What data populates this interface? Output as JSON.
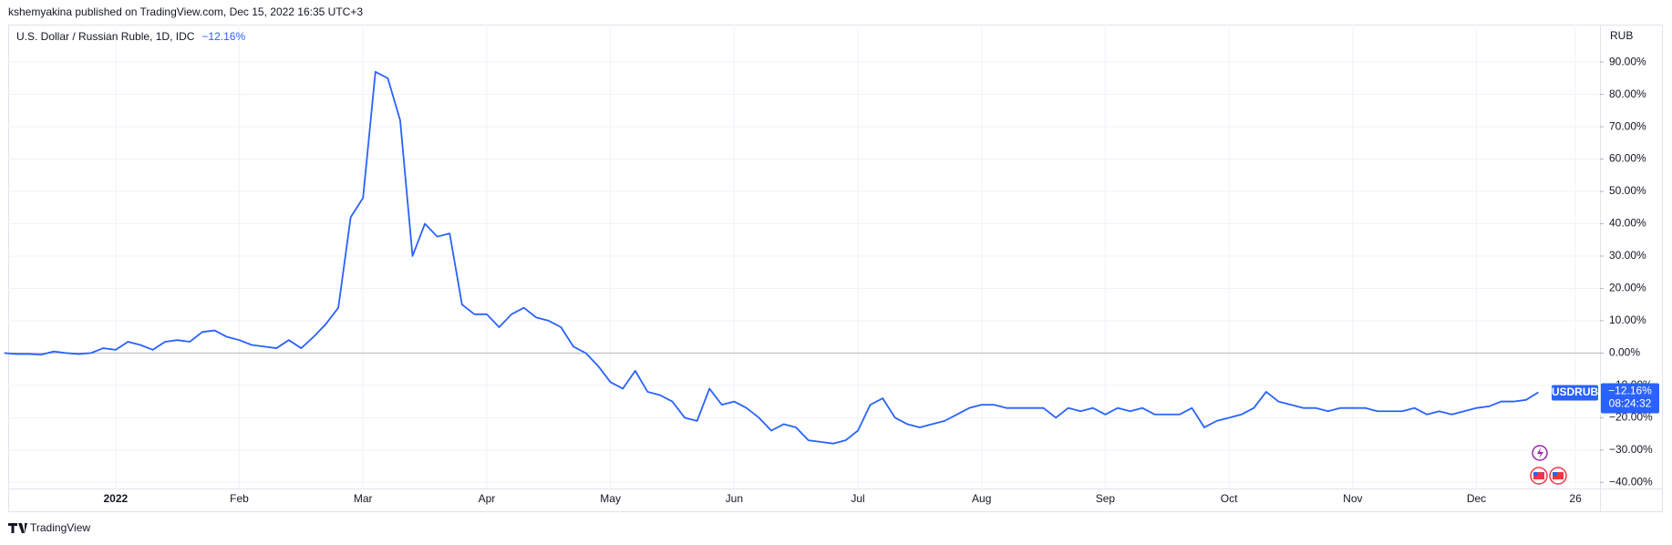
{
  "header": {
    "published": "kshemyakina published on TradingView.com, Dec 15, 2022 16:35 UTC+3",
    "branding": "TradingView"
  },
  "chart_data": {
    "type": "line",
    "title": "U.S. Dollar / Russian Ruble, 1D, IDC",
    "currency": "RUB",
    "countdown": "08:24:32",
    "categories": [
      null,
      null,
      null,
      null,
      null,
      null,
      null,
      null,
      null,
      "2022",
      null,
      null,
      null,
      null,
      null,
      null,
      null,
      null,
      null,
      "Feb",
      null,
      null,
      null,
      null,
      null,
      null,
      null,
      null,
      null,
      "Mar",
      null,
      null,
      null,
      null,
      null,
      null,
      null,
      null,
      null,
      "Apr",
      null,
      null,
      null,
      null,
      null,
      null,
      null,
      null,
      null,
      "May",
      null,
      null,
      null,
      null,
      null,
      null,
      null,
      null,
      null,
      "Jun",
      null,
      null,
      null,
      null,
      null,
      null,
      null,
      null,
      null,
      "Jul",
      null,
      null,
      null,
      null,
      null,
      null,
      null,
      null,
      null,
      "Aug",
      null,
      null,
      null,
      null,
      null,
      null,
      null,
      null,
      null,
      "Sep",
      null,
      null,
      null,
      null,
      null,
      null,
      null,
      null,
      null,
      "Oct",
      null,
      null,
      null,
      null,
      null,
      null,
      null,
      null,
      null,
      "Nov",
      null,
      null,
      null,
      null,
      null,
      null,
      null,
      null,
      null,
      "Dec",
      null,
      null,
      null,
      null,
      null,
      null,
      null,
      "26"
    ],
    "series": [
      {
        "name": "USDRUB",
        "color": "#2962ff",
        "values": [
          0,
          -0.3,
          -0.3,
          -0.5,
          0.5,
          0,
          -0.3,
          0,
          1.5,
          1,
          3.5,
          2.5,
          1,
          3.5,
          4,
          3.5,
          6.5,
          7,
          5,
          4,
          2.5,
          2,
          1.5,
          4,
          1.5,
          5,
          9,
          14,
          42,
          48,
          87,
          85,
          72,
          30,
          40,
          36,
          37,
          15,
          12,
          12,
          8,
          12,
          14,
          11,
          10,
          8,
          2,
          0,
          -4,
          -9,
          -11,
          -5.5,
          -12,
          -13,
          -15,
          -20,
          -21,
          -11,
          -16,
          -15,
          -17,
          -20,
          -24,
          -22,
          -23,
          -27,
          -27.5,
          -28,
          -27,
          -24,
          -16,
          -14,
          -20,
          -22,
          -23,
          -22,
          -21,
          -19,
          -17,
          -16,
          -16,
          -17,
          -17,
          -17,
          -17,
          -20,
          -17,
          -18,
          -17,
          -19,
          -17,
          -18,
          -17,
          -19,
          -19,
          -19,
          -17,
          -23,
          -21,
          -20,
          -19,
          -17,
          -12,
          -15,
          -16,
          -17,
          -17,
          -18,
          -17,
          -17,
          -17,
          -18,
          -18,
          -18,
          -17,
          -19,
          -18,
          -19,
          -18,
          -17,
          -16.5,
          -15,
          -15,
          -14.5,
          -12.16,
          null,
          null,
          null
        ],
        "value_labels": [
          null,
          null,
          null,
          null,
          null,
          null,
          null,
          null,
          null,
          null,
          null,
          null,
          null,
          null,
          null,
          null,
          null,
          null,
          null,
          null,
          null,
          null,
          null,
          null,
          null,
          null,
          null,
          null,
          null,
          null,
          null,
          null,
          null,
          null,
          null,
          null,
          null,
          null,
          null,
          null,
          null,
          null,
          null,
          null,
          null,
          null,
          null,
          null,
          null,
          null,
          null,
          null,
          null,
          null,
          null,
          null,
          null,
          null,
          null,
          null,
          null,
          null,
          null,
          null,
          null,
          null,
          null,
          null,
          null,
          null,
          null,
          null,
          null,
          null,
          null,
          null,
          null,
          null,
          null,
          null,
          null,
          null,
          null,
          null,
          null,
          null,
          null,
          null,
          null,
          null,
          null,
          null,
          null,
          null,
          null,
          null,
          null,
          null,
          null,
          null,
          null,
          null,
          null,
          null,
          null,
          null,
          null,
          null,
          null,
          null,
          null,
          null,
          null,
          null,
          null,
          null,
          null,
          null,
          null,
          null,
          null,
          null,
          null,
          null,
          "−12.16%",
          null,
          null,
          null
        ]
      }
    ],
    "ylim": [
      -41.9,
      101.6
    ],
    "yticks": [
      {
        "value": 90,
        "label": "90.00%"
      },
      {
        "value": 80,
        "label": "80.00%"
      },
      {
        "value": 70,
        "label": "70.00%"
      },
      {
        "value": 60,
        "label": "60.00%"
      },
      {
        "value": 50,
        "label": "50.00%"
      },
      {
        "value": 40,
        "label": "40.00%"
      },
      {
        "value": 30,
        "label": "30.00%"
      },
      {
        "value": 20,
        "label": "20.00%"
      },
      {
        "value": 10,
        "label": "10.00%"
      },
      {
        "value": 0,
        "label": "0.00%"
      },
      {
        "value": -10,
        "label": "−10.00%"
      },
      {
        "value": -20,
        "label": "−20.00%"
      },
      {
        "value": -30,
        "label": "−30.00%"
      },
      {
        "value": -40,
        "label": "−40.00%"
      }
    ],
    "grid": true
  }
}
